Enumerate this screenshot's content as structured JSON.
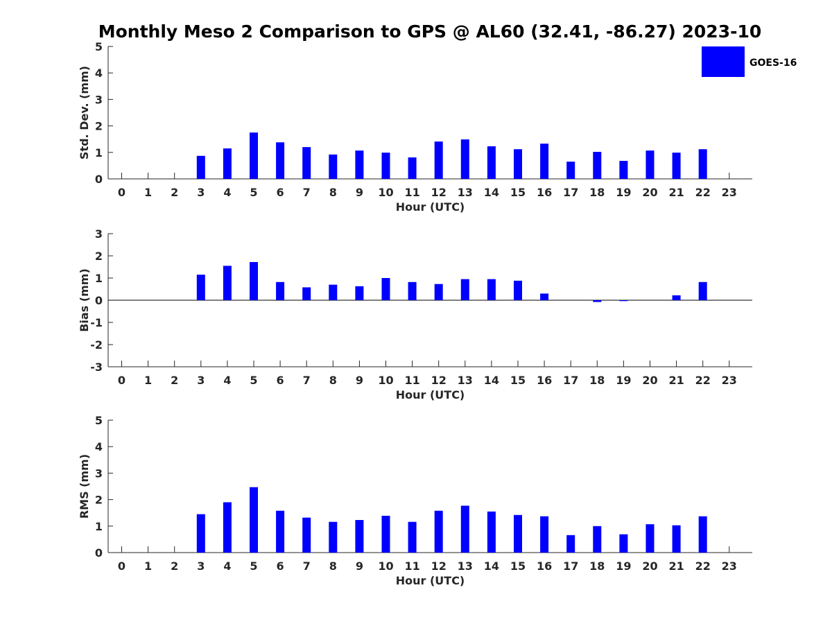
{
  "figure_title": "Monthly Meso 2 Comparison to GPS @ AL60 (32.41, -86.27) 2023-10",
  "legend": {
    "label": "GOES-16",
    "color": "#0000ff"
  },
  "colors": {
    "bar": "#0000ff",
    "axis": "#262626",
    "background": "#ffffff"
  },
  "chart_data": [
    {
      "type": "bar",
      "name": "stddev",
      "xlabel": "Hour (UTC)",
      "ylabel": "Std. Dev. (mm)",
      "ylim": [
        0,
        5
      ],
      "yticks": [
        0,
        1,
        2,
        3,
        4,
        5
      ],
      "categories": [
        "0",
        "1",
        "2",
        "3",
        "4",
        "5",
        "6",
        "7",
        "8",
        "9",
        "10",
        "11",
        "12",
        "13",
        "14",
        "15",
        "16",
        "17",
        "18",
        "19",
        "20",
        "21",
        "22",
        "23"
      ],
      "series": [
        {
          "name": "GOES-16",
          "values": [
            null,
            null,
            null,
            0.87,
            1.15,
            1.75,
            1.38,
            1.2,
            0.92,
            1.07,
            0.99,
            0.81,
            1.41,
            1.49,
            1.23,
            1.12,
            1.33,
            0.65,
            1.02,
            0.68,
            1.07,
            0.99,
            1.12,
            null
          ]
        }
      ],
      "show_legend": true
    },
    {
      "type": "bar",
      "name": "bias",
      "xlabel": "Hour (UTC)",
      "ylabel": "Bias (mm)",
      "ylim": [
        -3,
        3
      ],
      "yticks": [
        -3,
        -2,
        -1,
        0,
        1,
        2,
        3
      ],
      "categories": [
        "0",
        "1",
        "2",
        "3",
        "4",
        "5",
        "6",
        "7",
        "8",
        "9",
        "10",
        "11",
        "12",
        "13",
        "14",
        "15",
        "16",
        "17",
        "18",
        "19",
        "20",
        "21",
        "22",
        "23"
      ],
      "series": [
        {
          "name": "GOES-16",
          "values": [
            null,
            null,
            null,
            1.15,
            1.55,
            1.72,
            0.82,
            0.58,
            0.7,
            0.63,
            1.0,
            0.82,
            0.73,
            0.95,
            0.95,
            0.88,
            0.3,
            0.0,
            -0.08,
            -0.04,
            0.0,
            0.22,
            0.82,
            null
          ]
        }
      ],
      "show_legend": false
    },
    {
      "type": "bar",
      "name": "rms",
      "xlabel": "Hour (UTC)",
      "ylabel": "RMS (mm)",
      "ylim": [
        0,
        5
      ],
      "yticks": [
        0,
        1,
        2,
        3,
        4,
        5
      ],
      "categories": [
        "0",
        "1",
        "2",
        "3",
        "4",
        "5",
        "6",
        "7",
        "8",
        "9",
        "10",
        "11",
        "12",
        "13",
        "14",
        "15",
        "16",
        "17",
        "18",
        "19",
        "20",
        "21",
        "22",
        "23"
      ],
      "series": [
        {
          "name": "GOES-16",
          "values": [
            null,
            null,
            null,
            1.45,
            1.9,
            2.47,
            1.58,
            1.32,
            1.16,
            1.23,
            1.39,
            1.16,
            1.58,
            1.77,
            1.55,
            1.42,
            1.37,
            0.66,
            1.0,
            0.69,
            1.07,
            1.03,
            1.37,
            null
          ]
        }
      ],
      "show_legend": false
    }
  ]
}
